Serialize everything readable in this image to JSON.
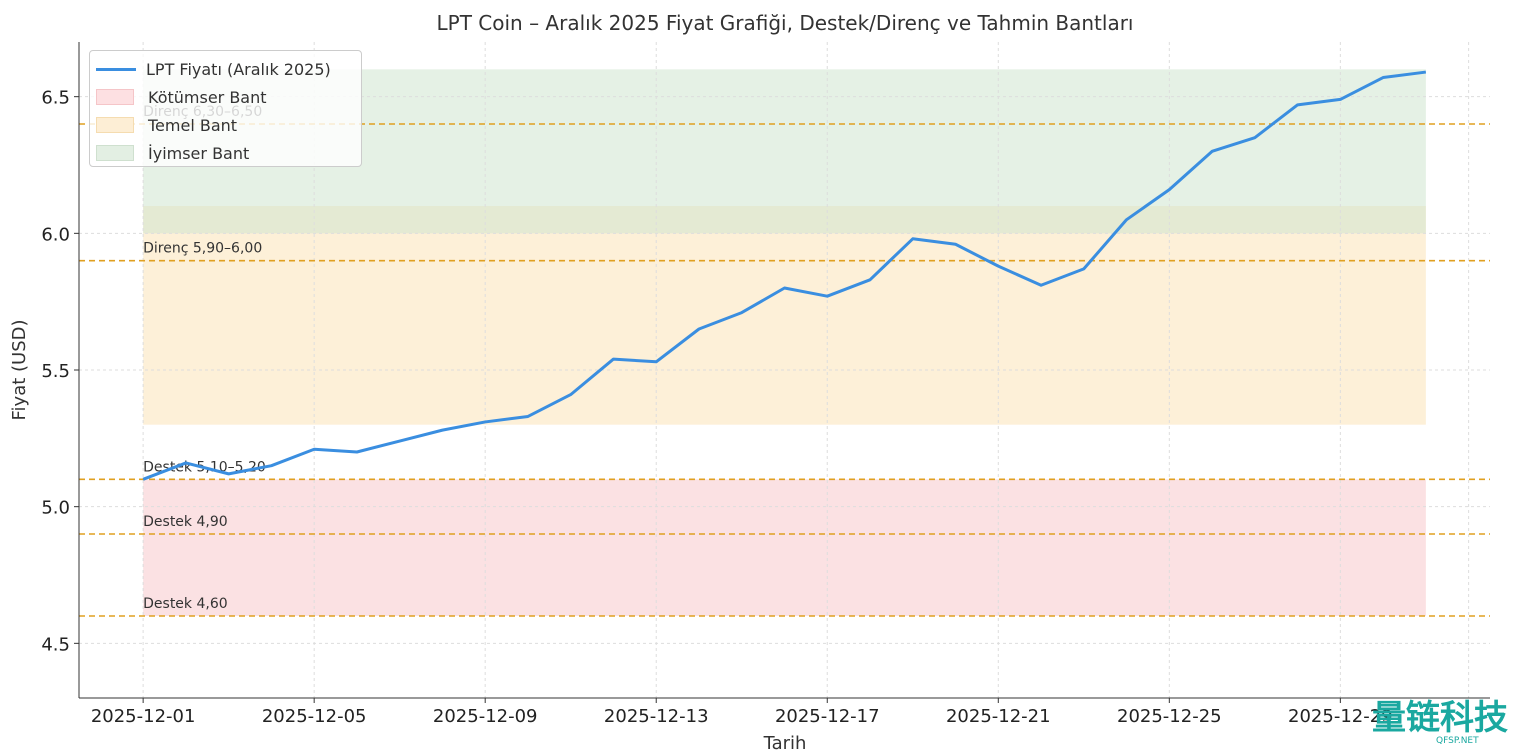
{
  "chart_data": {
    "type": "line",
    "title": "LPT Coin – Aralık 2025 Fiyat Grafiği, Destek/Direnç ve Tahmin Bantları",
    "xlabel": "Tarih",
    "ylabel": "Fiyat (USD)",
    "ylim": [
      4.3,
      6.7
    ],
    "xlim": [
      "2025-11-29T12",
      "2026-01-01T12"
    ],
    "grid": true,
    "legend_position": "top-left",
    "x_tick_labels": [
      "2025-12-01",
      "2025-12-05",
      "2025-12-09",
      "2025-12-13",
      "2025-12-17",
      "2025-12-21",
      "2025-12-25",
      "2025-12-29"
    ],
    "y_tick_labels": [
      "4.5",
      "5.0",
      "5.5",
      "6.0",
      "6.5"
    ],
    "series": [
      {
        "name": "LPT Fiyatı (Aralık 2025)",
        "color": "#3a8ee0",
        "x": [
          "2025-12-01",
          "2025-12-02",
          "2025-12-03",
          "2025-12-04",
          "2025-12-05",
          "2025-12-06",
          "2025-12-07",
          "2025-12-08",
          "2025-12-09",
          "2025-12-10",
          "2025-12-11",
          "2025-12-12",
          "2025-12-13",
          "2025-12-14",
          "2025-12-15",
          "2025-12-16",
          "2025-12-17",
          "2025-12-18",
          "2025-12-19",
          "2025-12-20",
          "2025-12-21",
          "2025-12-22",
          "2025-12-23",
          "2025-12-24",
          "2025-12-25",
          "2025-12-26",
          "2025-12-27",
          "2025-12-28",
          "2025-12-29",
          "2025-12-30",
          "2025-12-31"
        ],
        "values": [
          5.1,
          5.16,
          5.12,
          5.15,
          5.21,
          5.2,
          5.24,
          5.28,
          5.31,
          5.33,
          5.41,
          5.54,
          5.53,
          5.65,
          5.71,
          5.8,
          5.77,
          5.83,
          5.98,
          5.96,
          5.88,
          5.81,
          5.87,
          6.05,
          6.16,
          6.3,
          6.35,
          6.47,
          6.49,
          6.57,
          6.59
        ]
      }
    ],
    "bands": [
      {
        "name": "Kötümser Bant",
        "low": 4.6,
        "high": 5.1,
        "color": "#f8c8cc"
      },
      {
        "name": "Temel Bant",
        "low": 5.3,
        "high": 6.1,
        "color": "#fbe3b8"
      },
      {
        "name": "İyimser Bant",
        "low": 6.0,
        "high": 6.6,
        "color": "#cfe5cf"
      }
    ],
    "levels": [
      {
        "value": 4.6,
        "label": "Destek 4,60"
      },
      {
        "value": 4.9,
        "label": "Destek 4,90"
      },
      {
        "value": 5.1,
        "label": "Destek 5,10–5,20"
      },
      {
        "value": 5.9,
        "label": "Direnç 5,90–6,00"
      },
      {
        "value": 6.4,
        "label": "Direnç 6,30–6,50"
      }
    ],
    "level_color": "#e0a020"
  },
  "watermark": {
    "text": "量链科技",
    "sub": "QFSP.NET"
  }
}
